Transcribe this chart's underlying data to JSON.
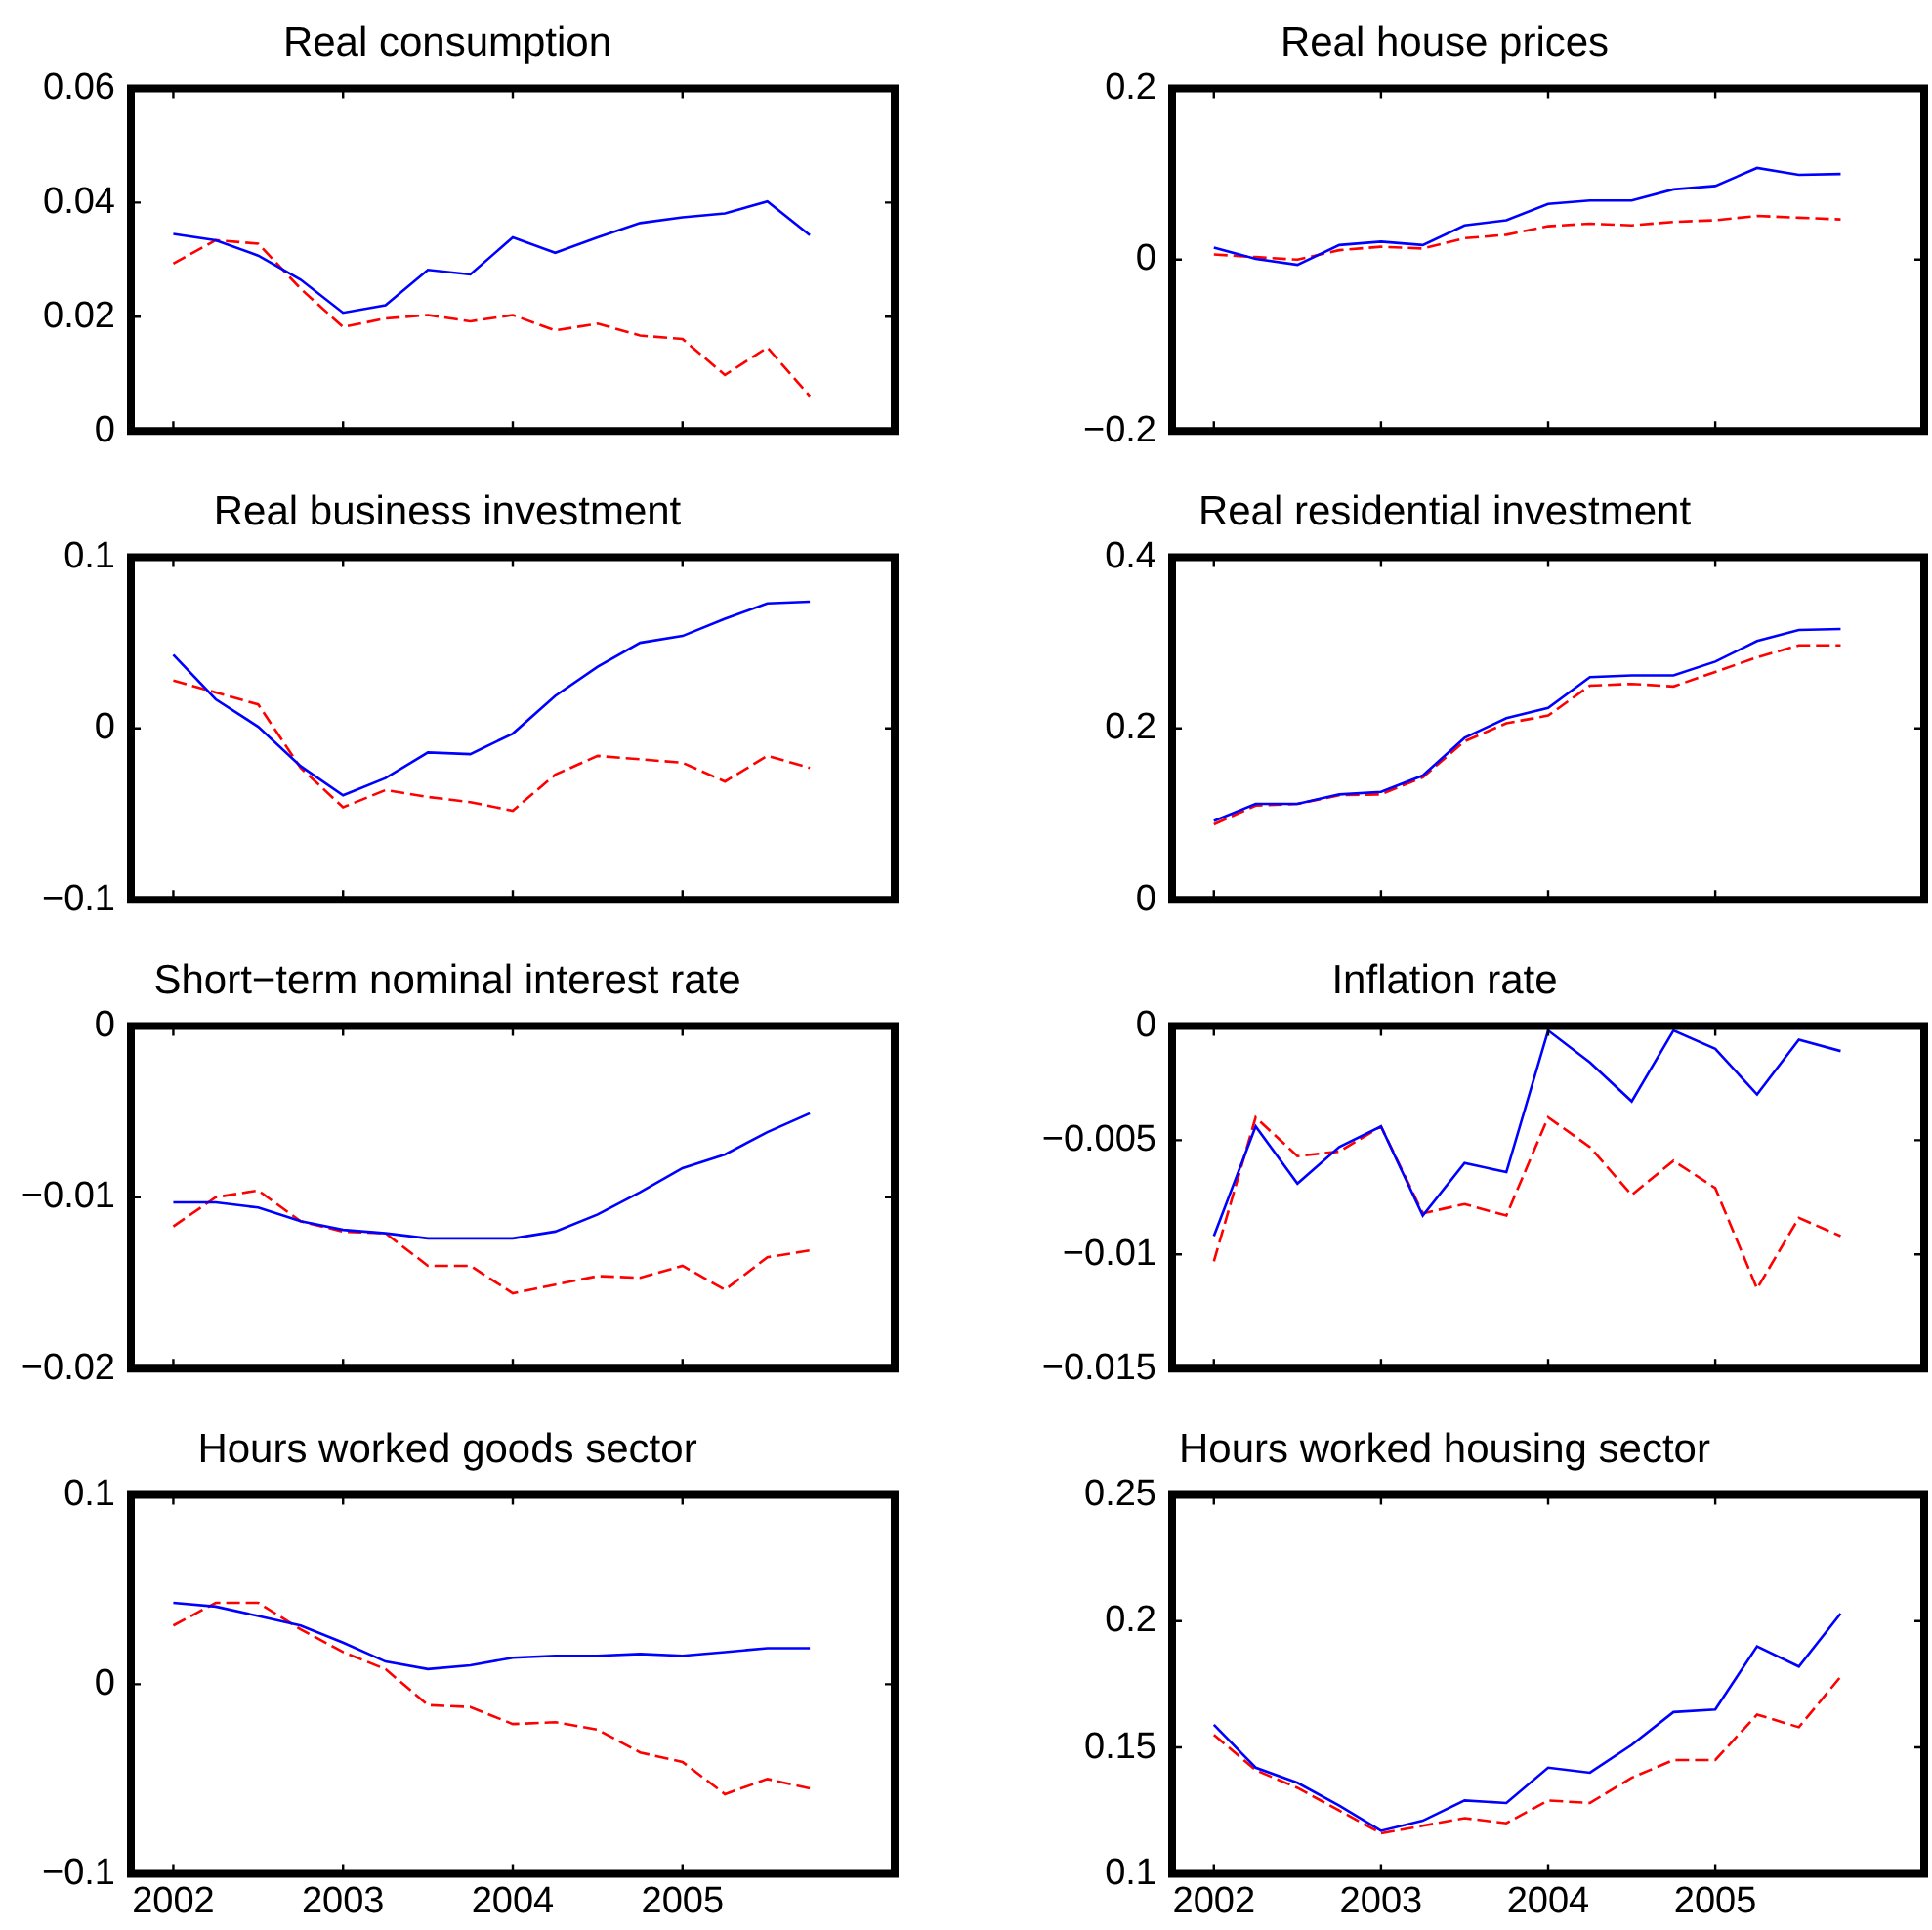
{
  "chart_data": [
    {
      "type": "line",
      "title": "Real consumption",
      "x": [
        2002,
        2002.25,
        2002.5,
        2002.75,
        2003,
        2003.25,
        2003.5,
        2003.75,
        2004,
        2004.25,
        2004.5,
        2004.75,
        2005,
        2005.25,
        2005.5,
        2005.75
      ],
      "xlim": [
        2001.75,
        2006.25
      ],
      "xticks": [
        2002,
        2003,
        2004,
        2005
      ],
      "ylim": [
        0,
        0.06
      ],
      "yticks": [
        0,
        0.02,
        0.04,
        0.06
      ],
      "tick_labels": "y",
      "series": [
        {
          "color": "#0000ff",
          "line_style": "solid",
          "values": [
            0.0345,
            0.0334,
            0.0307,
            0.0265,
            0.0207,
            0.022,
            0.0282,
            0.0274,
            0.0339,
            0.0312,
            0.0339,
            0.0364,
            0.0374,
            0.0381,
            0.0402,
            0.0343
          ]
        },
        {
          "color": "#ff0000",
          "line_style": "dashed",
          "values": [
            0.0293,
            0.0334,
            0.0328,
            0.0249,
            0.0182,
            0.0197,
            0.0203,
            0.0192,
            0.0203,
            0.0176,
            0.0188,
            0.0167,
            0.0161,
            0.0098,
            0.0146,
            0.0061
          ]
        }
      ]
    },
    {
      "type": "line",
      "title": "Real house prices",
      "x": [
        2002,
        2002.25,
        2002.5,
        2002.75,
        2003,
        2003.25,
        2003.5,
        2003.75,
        2004,
        2004.25,
        2004.5,
        2004.75,
        2005,
        2005.25,
        2005.5,
        2005.75
      ],
      "xlim": [
        2001.75,
        2006.25
      ],
      "xticks": [
        2002,
        2003,
        2004,
        2005
      ],
      "ylim": [
        -0.2,
        0.2
      ],
      "yticks": [
        {
          "value": -0.2,
          "label": "−0.2"
        },
        0,
        0.2
      ],
      "tick_labels": "y",
      "series": [
        {
          "color": "#0000ff",
          "line_style": "solid",
          "values": [
            0.014,
            0.001,
            -0.006,
            0.017,
            0.021,
            0.017,
            0.04,
            0.046,
            0.065,
            0.069,
            0.069,
            0.082,
            0.086,
            0.107,
            0.099,
            0.1
          ]
        },
        {
          "color": "#ff0000",
          "line_style": "dashed",
          "values": [
            0.006,
            0.003,
            0,
            0.011,
            0.015,
            0.013,
            0.025,
            0.029,
            0.039,
            0.042,
            0.04,
            0.044,
            0.046,
            0.051,
            0.049,
            0.047
          ]
        }
      ]
    },
    {
      "type": "line",
      "title": "Real business investment",
      "x": [
        2002,
        2002.25,
        2002.5,
        2002.75,
        2003,
        2003.25,
        2003.5,
        2003.75,
        2004,
        2004.25,
        2004.5,
        2004.75,
        2005,
        2005.25,
        2005.5,
        2005.75
      ],
      "xlim": [
        2001.75,
        2006.25
      ],
      "xticks": [
        2002,
        2003,
        2004,
        2005
      ],
      "ylim": [
        -0.1,
        0.1
      ],
      "yticks": [
        {
          "value": -0.1,
          "label": "−0.1"
        },
        0,
        0.1
      ],
      "tick_labels": "y",
      "series": [
        {
          "color": "#0000ff",
          "line_style": "solid",
          "values": [
            0.043,
            0.017,
            0.001,
            -0.022,
            -0.039,
            -0.029,
            -0.014,
            -0.015,
            -0.003,
            0.019,
            0.036,
            0.05,
            0.054,
            0.064,
            0.073,
            0.074
          ]
        },
        {
          "color": "#ff0000",
          "line_style": "dashed",
          "values": [
            0.028,
            0.021,
            0.014,
            -0.023,
            -0.046,
            -0.036,
            -0.04,
            -0.043,
            -0.048,
            -0.027,
            -0.016,
            -0.018,
            -0.02,
            -0.031,
            -0.016,
            -0.023
          ]
        }
      ]
    },
    {
      "type": "line",
      "title": "Real residential investment",
      "x": [
        2002,
        2002.25,
        2002.5,
        2002.75,
        2003,
        2003.25,
        2003.5,
        2003.75,
        2004,
        2004.25,
        2004.5,
        2004.75,
        2005,
        2005.25,
        2005.5,
        2005.75
      ],
      "xlim": [
        2001.75,
        2006.25
      ],
      "xticks": [
        2002,
        2003,
        2004,
        2005
      ],
      "ylim": [
        0,
        0.4
      ],
      "yticks": [
        0,
        0.2,
        0.4
      ],
      "tick_labels": "y",
      "series": [
        {
          "color": "#0000ff",
          "line_style": "solid",
          "values": [
            0.092,
            0.112,
            0.112,
            0.123,
            0.126,
            0.145,
            0.189,
            0.212,
            0.224,
            0.26,
            0.262,
            0.262,
            0.278,
            0.302,
            0.315,
            0.316
          ]
        },
        {
          "color": "#ff0000",
          "line_style": "dashed",
          "values": [
            0.088,
            0.11,
            0.112,
            0.122,
            0.123,
            0.143,
            0.185,
            0.206,
            0.215,
            0.25,
            0.252,
            0.249,
            0.266,
            0.283,
            0.297,
            0.297
          ]
        }
      ]
    },
    {
      "type": "line",
      "title": "Short−term nominal interest rate",
      "x": [
        2002,
        2002.25,
        2002.5,
        2002.75,
        2003,
        2003.25,
        2003.5,
        2003.75,
        2004,
        2004.25,
        2004.5,
        2004.75,
        2005,
        2005.25,
        2005.5,
        2005.75
      ],
      "xlim": [
        2001.75,
        2006.25
      ],
      "xticks": [
        2002,
        2003,
        2004,
        2005
      ],
      "ylim": [
        -0.02,
        0
      ],
      "yticks": [
        {
          "value": -0.02,
          "label": "−0.02"
        },
        {
          "value": -0.01,
          "label": "−0.01"
        },
        0
      ],
      "tick_labels": "y",
      "series": [
        {
          "color": "#0000ff",
          "line_style": "solid",
          "values": [
            -0.0103,
            -0.0103,
            -0.0106,
            -0.0114,
            -0.0119,
            -0.0121,
            -0.0124,
            -0.0124,
            -0.0124,
            -0.012,
            -0.011,
            -0.0097,
            -0.0083,
            -0.0075,
            -0.0062,
            -0.0051
          ]
        },
        {
          "color": "#ff0000",
          "line_style": "dashed",
          "values": [
            -0.0117,
            -0.01,
            -0.0096,
            -0.0114,
            -0.012,
            -0.0121,
            -0.014,
            -0.014,
            -0.0156,
            -0.0151,
            -0.0146,
            -0.0147,
            -0.014,
            -0.0154,
            -0.0135,
            -0.0131
          ]
        }
      ]
    },
    {
      "type": "line",
      "title": "Inflation rate",
      "x": [
        2002,
        2002.25,
        2002.5,
        2002.75,
        2003,
        2003.25,
        2003.5,
        2003.75,
        2004,
        2004.25,
        2004.5,
        2004.75,
        2005,
        2005.25,
        2005.5,
        2005.75
      ],
      "xlim": [
        2001.75,
        2006.25
      ],
      "xticks": [
        2002,
        2003,
        2004,
        2005
      ],
      "ylim": [
        -0.015,
        0
      ],
      "yticks": [
        {
          "value": -0.015,
          "label": "−0.015"
        },
        {
          "value": -0.01,
          "label": "−0.01"
        },
        {
          "value": -0.005,
          "label": "−0.005"
        },
        0
      ],
      "tick_labels": "y",
      "series": [
        {
          "color": "#0000ff",
          "line_style": "solid",
          "values": [
            -0.0092,
            -0.0044,
            -0.0069,
            -0.0053,
            -0.0044,
            -0.0083,
            -0.006,
            -0.0064,
            -0.0002,
            -0.0016,
            -0.0033,
            -0.0002,
            -0.001,
            -0.003,
            -0.0006,
            -0.0011
          ]
        },
        {
          "color": "#ff0000",
          "line_style": "dashed",
          "values": [
            -0.0103,
            -0.004,
            -0.0057,
            -0.0055,
            -0.0044,
            -0.0082,
            -0.0078,
            -0.0083,
            -0.004,
            -0.0053,
            -0.0074,
            -0.0059,
            -0.0071,
            -0.0115,
            -0.0084,
            -0.0092
          ]
        }
      ]
    },
    {
      "type": "line",
      "title": "Hours worked goods sector",
      "x": [
        2002,
        2002.25,
        2002.5,
        2002.75,
        2003,
        2003.25,
        2003.5,
        2003.75,
        2004,
        2004.25,
        2004.5,
        2004.75,
        2005,
        2005.25,
        2005.5,
        2005.75
      ],
      "xlim": [
        2001.75,
        2006.25
      ],
      "xticks": [
        2002,
        2003,
        2004,
        2005
      ],
      "ylim": [
        -0.1,
        0.1
      ],
      "yticks": [
        {
          "value": -0.1,
          "label": "−0.1"
        },
        0,
        0.1
      ],
      "series": [
        {
          "color": "#0000ff",
          "line_style": "solid",
          "values": [
            0.043,
            0.041,
            0.036,
            0.031,
            0.022,
            0.012,
            0.008,
            0.01,
            0.014,
            0.015,
            0.015,
            0.016,
            0.015,
            0.017,
            0.019,
            0.019
          ]
        },
        {
          "color": "#ff0000",
          "line_style": "dashed",
          "values": [
            0.031,
            0.043,
            0.043,
            0.029,
            0.017,
            0.008,
            -0.011,
            -0.012,
            -0.021,
            -0.02,
            -0.024,
            -0.036,
            -0.041,
            -0.058,
            -0.05,
            -0.055
          ]
        }
      ]
    },
    {
      "type": "line",
      "title": "Hours worked housing sector",
      "x": [
        2002,
        2002.25,
        2002.5,
        2002.75,
        2003,
        2003.25,
        2003.5,
        2003.75,
        2004,
        2004.25,
        2004.5,
        2004.75,
        2005,
        2005.25,
        2005.5,
        2005.75
      ],
      "xlim": [
        2001.75,
        2006.25
      ],
      "xticks": [
        2002,
        2003,
        2004,
        2005
      ],
      "ylim": [
        0.1,
        0.25
      ],
      "yticks": [
        0.1,
        0.15,
        0.2,
        0.25
      ],
      "series": [
        {
          "color": "#0000ff",
          "line_style": "solid",
          "values": [
            0.159,
            0.142,
            0.136,
            0.127,
            0.117,
            0.121,
            0.129,
            0.128,
            0.142,
            0.14,
            0.151,
            0.164,
            0.165,
            0.19,
            0.182,
            0.203
          ]
        },
        {
          "color": "#ff0000",
          "line_style": "dashed",
          "values": [
            0.155,
            0.141,
            0.134,
            0.125,
            0.116,
            0.119,
            0.122,
            0.12,
            0.129,
            0.128,
            0.138,
            0.145,
            0.145,
            0.163,
            0.158,
            0.178
          ]
        }
      ]
    }
  ]
}
